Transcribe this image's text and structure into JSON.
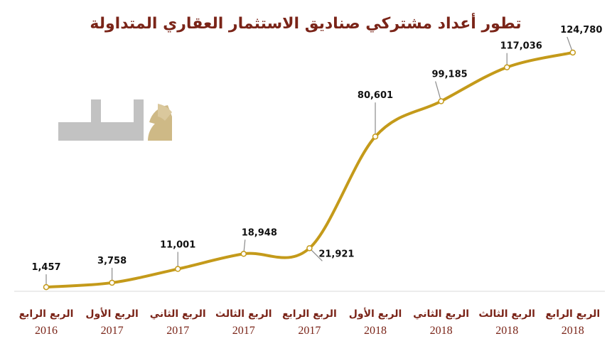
{
  "chart_data": {
    "type": "line",
    "title": "تطور أعداد مشتركي صناديق الاستثمار العقاري المتداولة",
    "categories": [
      {
        "label": "الربع الرابع",
        "year": "2016"
      },
      {
        "label": "الربع الأول",
        "year": "2017"
      },
      {
        "label": "الربع الثاني",
        "year": "2017"
      },
      {
        "label": "الربع الثالث",
        "year": "2017"
      },
      {
        "label": "الربع الرابع",
        "year": "2017"
      },
      {
        "label": "الربع الأول",
        "year": "2018"
      },
      {
        "label": "الربع الثاني",
        "year": "2018"
      },
      {
        "label": "الربع الثالث",
        "year": "2018"
      },
      {
        "label": "الربع الرابع",
        "year": "2018"
      }
    ],
    "values": [
      1457,
      3758,
      11001,
      18948,
      21921,
      80601,
      99185,
      117036,
      124780
    ],
    "data_labels": [
      "1,457",
      "3,758",
      "11,001",
      "18,948",
      "21,921",
      "80,601",
      "99,185",
      "117,036",
      "124,780"
    ],
    "ylim": [
      0,
      130000
    ],
    "grid": false,
    "legend": "none",
    "line_color": "#c49a1a",
    "logo_text": "مال"
  }
}
